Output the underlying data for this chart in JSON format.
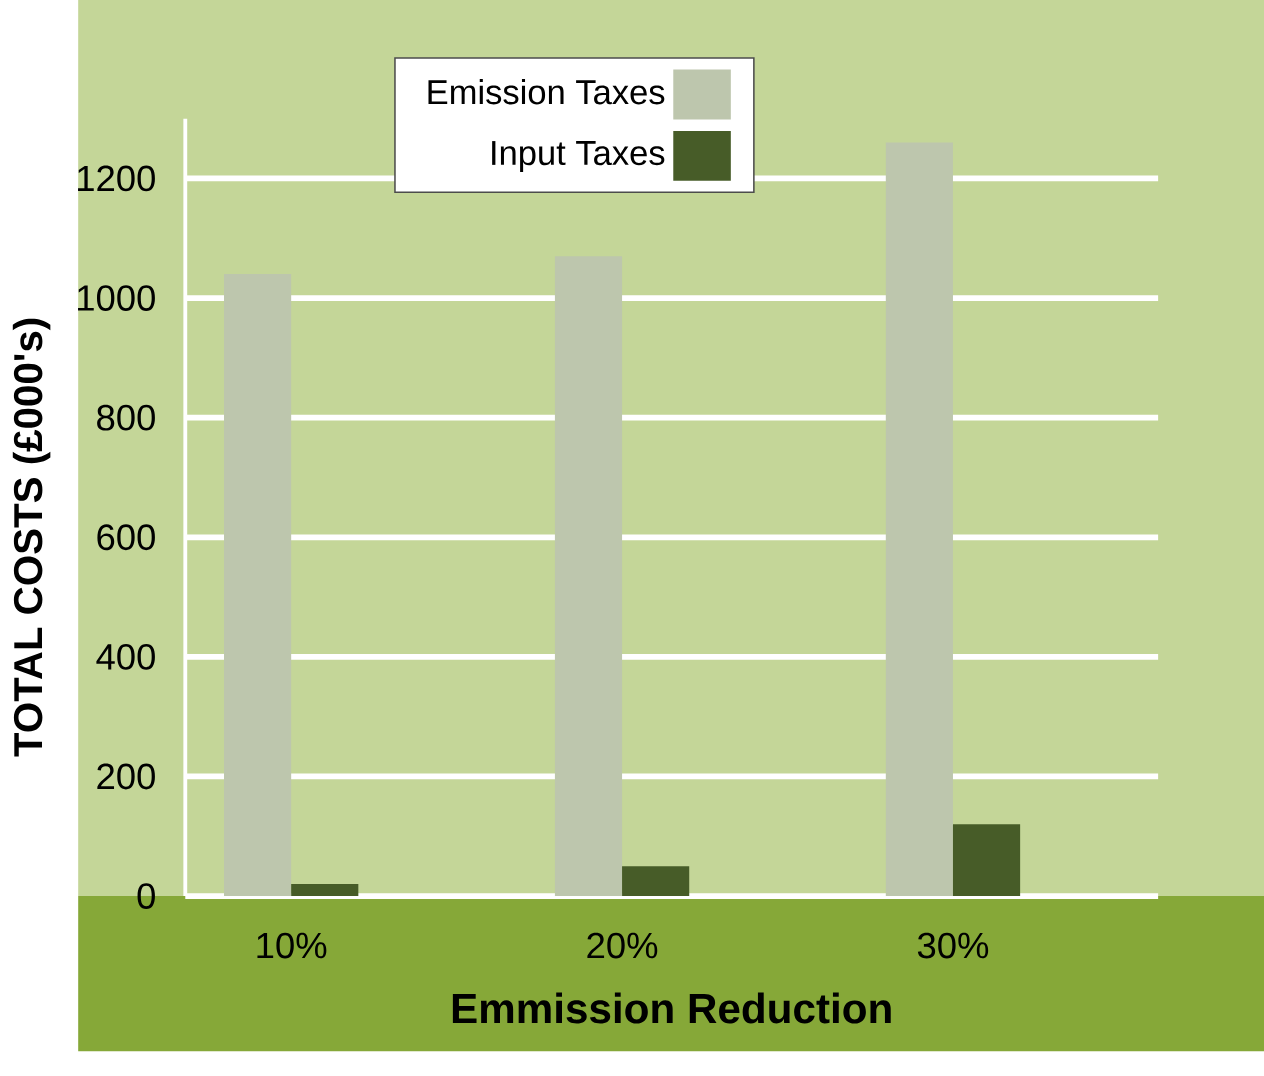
{
  "chart_data": {
    "type": "bar",
    "xlabel": "Emmission Reduction",
    "ylabel": "TOTAL COSTS (£000's)",
    "categories": [
      "10%",
      "20%",
      "30%"
    ],
    "series": [
      {
        "name": "Emission Taxes",
        "color": "#bdc6ad",
        "values": [
          1040,
          1070,
          1260
        ]
      },
      {
        "name": "Input Taxes",
        "color": "#475c28",
        "values": [
          20,
          50,
          120
        ]
      }
    ],
    "ylim": [
      0,
      1300
    ],
    "yticks": [
      0,
      200,
      400,
      600,
      800,
      1000,
      1200
    ],
    "grid": "y",
    "legend": "top"
  }
}
